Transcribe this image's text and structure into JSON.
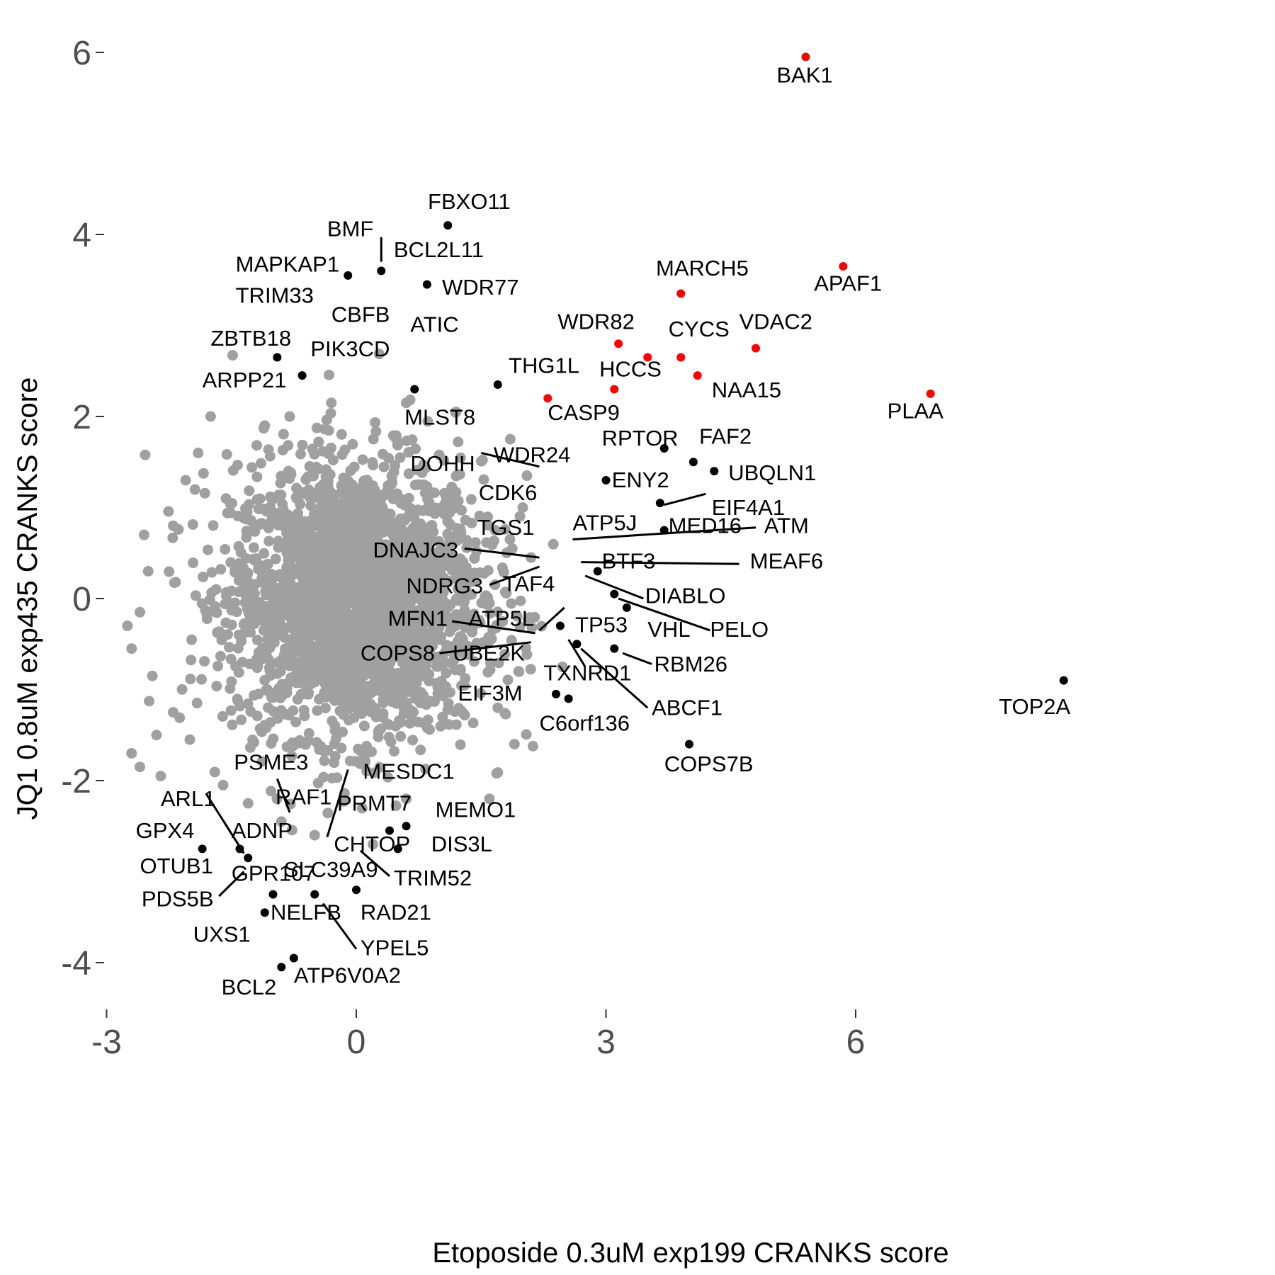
{
  "chart_data": {
    "type": "scatter",
    "xlabel": "Etoposide 0.3uM exp199 CRANKS score",
    "ylabel": "JQ1 0.8uM exp435 CRANKS score",
    "xlim": [
      -3.2,
      8.6
    ],
    "ylim": [
      -4.55,
      6.3
    ],
    "x_ticks": [
      -3,
      0,
      3,
      6
    ],
    "x_tick_labels": [
      "-3",
      "0",
      "3",
      "6"
    ],
    "y_ticks": [
      -4,
      -2,
      0,
      2,
      4,
      6
    ],
    "y_tick_labels": [
      "-4",
      "-2",
      "0",
      "2",
      "4",
      "6"
    ],
    "grid": false,
    "colors": {
      "background": "#ffffff",
      "background_points": "#a0a0a0",
      "labeled_points": "#000000",
      "highlight_points": "#ff0000"
    },
    "background_cloud": {
      "description_count": "approximate",
      "color": "#a0a0a0",
      "center": [
        0.0,
        0.0
      ],
      "spread": [
        0.75,
        0.75
      ],
      "n": 2600,
      "outliers": [
        [
          -2.7,
          -0.55
        ],
        [
          -2.6,
          -0.15
        ],
        [
          -2.5,
          0.3
        ],
        [
          -2.45,
          -0.85
        ],
        [
          -2.7,
          -1.7
        ],
        [
          -2.6,
          -1.85
        ],
        [
          -2.4,
          -1.5
        ],
        [
          -2.2,
          0.8
        ],
        [
          -2.05,
          1.3
        ],
        [
          -1.75,
          2.0
        ],
        [
          -1.1,
          1.9
        ],
        [
          -0.8,
          2.0
        ],
        [
          -2.35,
          -1.95
        ],
        [
          -2.0,
          -1.55
        ],
        [
          -1.6,
          -2.05
        ],
        [
          -1.3,
          -2.25
        ],
        [
          -0.9,
          -2.45
        ],
        [
          -0.5,
          -2.6
        ],
        [
          0.2,
          -2.7
        ],
        [
          0.6,
          -2.2
        ],
        [
          1.6,
          -2.2
        ],
        [
          1.9,
          -1.6
        ],
        [
          2.05,
          1.35
        ],
        [
          1.85,
          1.75
        ],
        [
          2.0,
          1.0
        ],
        [
          1.2,
          2.05
        ],
        [
          0.6,
          2.15
        ],
        [
          -0.3,
          2.15
        ],
        [
          1.7,
          -1.2
        ],
        [
          -2.55,
          0.7
        ],
        [
          -2.2,
          -1.25
        ],
        [
          1.95,
          -0.8
        ],
        [
          2.1,
          0.45
        ],
        [
          -2.75,
          -0.3
        ],
        [
          -1.9,
          1.6
        ]
      ]
    },
    "highlighted_points": [
      {
        "gene": "BAK1",
        "x": 5.4,
        "y": 5.95
      },
      {
        "gene": "APAF1",
        "x": 5.85,
        "y": 3.65
      },
      {
        "gene": "MARCH5",
        "x": 3.9,
        "y": 3.35
      },
      {
        "gene": "VDAC2",
        "x": 4.8,
        "y": 2.75
      },
      {
        "gene": "WDR82",
        "x": 3.15,
        "y": 2.8
      },
      {
        "gene": "CYCS",
        "x": 3.9,
        "y": 2.65
      },
      {
        "gene": "HCCS",
        "x": 3.5,
        "y": 2.65
      },
      {
        "gene": "NAA15",
        "x": 4.1,
        "y": 2.45
      },
      {
        "gene": "CASP9",
        "x": 2.3,
        "y": 2.2
      },
      {
        "gene": "",
        "x": 3.1,
        "y": 2.3
      },
      {
        "gene": "PLAA",
        "x": 6.9,
        "y": 2.25
      }
    ],
    "labeled_points": [
      {
        "gene": "FBXO11",
        "x": 1.1,
        "y": 4.1
      },
      {
        "gene": "BCL2L11",
        "x": 0.3,
        "y": 3.6
      },
      {
        "gene": "MAPKAP1",
        "x": -0.1,
        "y": 3.55
      },
      {
        "gene": "WDR77",
        "x": 0.85,
        "y": 3.45
      },
      {
        "gene": "TOP2A",
        "x": 8.5,
        "y": -0.9
      },
      {
        "gene": "COPS7B",
        "x": 4.0,
        "y": -1.6
      },
      {
        "gene": "BCL2",
        "x": -0.9,
        "y": -4.05
      },
      {
        "gene": "ATP6V0A2",
        "x": -0.75,
        "y": -3.95
      },
      {
        "gene": "GPX4",
        "x": -1.85,
        "y": -2.75
      },
      {
        "gene": "TRIM52",
        "x": 0.5,
        "y": -2.75
      },
      {
        "gene": "UBQLN1",
        "x": 4.3,
        "y": 1.4
      },
      {
        "gene": "RPTOR",
        "x": 3.7,
        "y": 1.65
      },
      {
        "gene": "FAF2",
        "x": 4.05,
        "y": 1.5
      },
      {
        "gene": "EIF4A1",
        "x": 3.65,
        "y": 1.05
      },
      {
        "gene": "ENY2",
        "x": 3.0,
        "y": 1.3
      },
      {
        "gene": "MED16",
        "x": 3.7,
        "y": 0.75
      },
      {
        "gene": "MEMO1",
        "x": 0.6,
        "y": -2.5
      },
      {
        "gene": "DIS3L",
        "x": 0.4,
        "y": -2.55
      },
      {
        "gene": "ARPP21",
        "x": -0.65,
        "y": 2.45
      },
      {
        "gene": "ZBTB18",
        "x": -0.95,
        "y": 2.65
      },
      {
        "gene": "THG1L",
        "x": 1.7,
        "y": 2.35
      },
      {
        "gene": "MLST8",
        "x": 0.7,
        "y": 2.3
      },
      {
        "gene": "ABCF1",
        "x": 2.65,
        "y": -0.5
      },
      {
        "gene": "RBM26",
        "x": 3.1,
        "y": -0.55
      },
      {
        "gene": "VHL",
        "x": 3.25,
        "y": -0.1
      },
      {
        "gene": "PELO",
        "x": 3.1,
        "y": 0.05
      },
      {
        "gene": "DIABLO",
        "x": 2.9,
        "y": 0.3
      },
      {
        "gene": "TP53",
        "x": 2.45,
        "y": -0.3
      },
      {
        "gene": "C6orf136",
        "x": 2.4,
        "y": -1.05
      },
      {
        "gene": "TXNRD1",
        "x": 2.55,
        "y": -1.1
      },
      {
        "gene": "NELFB",
        "x": -1.1,
        "y": -3.45
      },
      {
        "gene": "UXS1",
        "x": -1.0,
        "y": -3.25
      },
      {
        "gene": "PDS5B",
        "x": -1.3,
        "y": -2.85
      },
      {
        "gene": "OTUB1",
        "x": -1.4,
        "y": -2.75
      },
      {
        "gene": "RAD21",
        "x": 0.0,
        "y": -3.2
      },
      {
        "gene": "YPEL5",
        "x": -0.5,
        "y": -3.25
      }
    ],
    "labels": [
      {
        "text": "BAK1",
        "x": 5.05,
        "y": 5.67
      },
      {
        "text": "APAF1",
        "x": 5.5,
        "y": 3.38
      },
      {
        "text": "MARCH5",
        "x": 3.6,
        "y": 3.55
      },
      {
        "text": "VDAC2",
        "x": 4.6,
        "y": 2.96
      },
      {
        "text": "WDR82",
        "x": 2.42,
        "y": 2.96
      },
      {
        "text": "CYCS",
        "x": 3.75,
        "y": 2.88
      },
      {
        "text": "HCCS",
        "x": 2.92,
        "y": 2.44
      },
      {
        "text": "NAA15",
        "x": 4.27,
        "y": 2.21
      },
      {
        "text": "CASP9",
        "x": 2.3,
        "y": 1.96
      },
      {
        "text": "PLAA",
        "x": 6.38,
        "y": 1.98
      },
      {
        "text": "FBXO11",
        "x": 0.86,
        "y": 4.28
      },
      {
        "text": "BMF",
        "x": -0.35,
        "y": 3.98
      },
      {
        "text": "BCL2L11",
        "x": 0.45,
        "y": 3.75
      },
      {
        "text": "MAPKAP1",
        "x": -1.45,
        "y": 3.59
      },
      {
        "text": "WDR77",
        "x": 1.03,
        "y": 3.34
      },
      {
        "text": "TRIM33",
        "x": -1.45,
        "y": 3.25
      },
      {
        "text": "CBFB",
        "x": -0.3,
        "y": 3.04
      },
      {
        "text": "ATIC",
        "x": 0.65,
        "y": 2.93
      },
      {
        "text": "ZBTB18",
        "x": -1.75,
        "y": 2.78
      },
      {
        "text": "PIK3CD",
        "x": -0.55,
        "y": 2.66
      },
      {
        "text": "THG1L",
        "x": 1.83,
        "y": 2.48
      },
      {
        "text": "ARPP21",
        "x": -1.85,
        "y": 2.32
      },
      {
        "text": "MLST8",
        "x": 0.58,
        "y": 1.91
      },
      {
        "text": "RPTOR",
        "x": 2.95,
        "y": 1.68
      },
      {
        "text": "FAF2",
        "x": 4.12,
        "y": 1.7
      },
      {
        "text": "WDR24",
        "x": 1.65,
        "y": 1.5
      },
      {
        "text": "DOHH",
        "x": 0.65,
        "y": 1.4
      },
      {
        "text": "UBQLN1",
        "x": 4.47,
        "y": 1.3
      },
      {
        "text": "ENY2",
        "x": 3.07,
        "y": 1.22
      },
      {
        "text": "CDK6",
        "x": 1.47,
        "y": 1.08
      },
      {
        "text": "EIF4A1",
        "x": 4.27,
        "y": 0.92
      },
      {
        "text": "TGS1",
        "x": 1.45,
        "y": 0.7
      },
      {
        "text": "ATP5J",
        "x": 2.6,
        "y": 0.75
      },
      {
        "text": "MED16",
        "x": 3.75,
        "y": 0.72
      },
      {
        "text": "ATM",
        "x": 4.9,
        "y": 0.72
      },
      {
        "text": "DNAJC3",
        "x": 0.2,
        "y": 0.45
      },
      {
        "text": "BTF3",
        "x": 2.95,
        "y": 0.33
      },
      {
        "text": "MEAF6",
        "x": 4.73,
        "y": 0.33
      },
      {
        "text": "NDRG3",
        "x": 0.6,
        "y": 0.06
      },
      {
        "text": "TAF4",
        "x": 1.76,
        "y": 0.08
      },
      {
        "text": "DIABLO",
        "x": 3.47,
        "y": -0.05
      },
      {
        "text": "MFN1",
        "x": 0.38,
        "y": -0.3
      },
      {
        "text": "ATP5L",
        "x": 1.35,
        "y": -0.3
      },
      {
        "text": "VHL",
        "x": 3.5,
        "y": -0.42
      },
      {
        "text": "PELO",
        "x": 4.25,
        "y": -0.42
      },
      {
        "text": "TP53",
        "x": 2.63,
        "y": -0.37
      },
      {
        "text": "COPS8",
        "x": 0.05,
        "y": -0.68
      },
      {
        "text": "UBE2K",
        "x": 1.16,
        "y": -0.68
      },
      {
        "text": "RBM26",
        "x": 3.58,
        "y": -0.8
      },
      {
        "text": "TXNRD1",
        "x": 2.25,
        "y": -0.9
      },
      {
        "text": "EIF3M",
        "x": 1.22,
        "y": -1.12
      },
      {
        "text": "ABCF1",
        "x": 3.55,
        "y": -1.28
      },
      {
        "text": "C6orf136",
        "x": 2.2,
        "y": -1.45
      },
      {
        "text": "TOP2A",
        "x": 7.72,
        "y": -1.27
      },
      {
        "text": "COPS7B",
        "x": 3.7,
        "y": -1.9
      },
      {
        "text": "PSME3",
        "x": -1.47,
        "y": -1.88
      },
      {
        "text": "MESDC1",
        "x": 0.08,
        "y": -1.98
      },
      {
        "text": "ARL1",
        "x": -2.35,
        "y": -2.28
      },
      {
        "text": "RAF1",
        "x": -0.97,
        "y": -2.26
      },
      {
        "text": "PRMT7",
        "x": -0.23,
        "y": -2.33
      },
      {
        "text": "MEMO1",
        "x": 0.95,
        "y": -2.4
      },
      {
        "text": "GPX4",
        "x": -2.65,
        "y": -2.63
      },
      {
        "text": "ADNP",
        "x": -1.5,
        "y": -2.63
      },
      {
        "text": "CHTOP",
        "x": -0.27,
        "y": -2.78
      },
      {
        "text": "DIS3L",
        "x": 0.9,
        "y": -2.78
      },
      {
        "text": "OTUB1",
        "x": -2.6,
        "y": -3.02
      },
      {
        "text": "GPR107",
        "x": -1.5,
        "y": -3.1
      },
      {
        "text": "SLC39A9",
        "x": -0.87,
        "y": -3.06
      },
      {
        "text": "TRIM52",
        "x": 0.45,
        "y": -3.15
      },
      {
        "text": "PDS5B",
        "x": -2.58,
        "y": -3.38
      },
      {
        "text": "NELFB",
        "x": -1.03,
        "y": -3.53
      },
      {
        "text": "RAD21",
        "x": 0.05,
        "y": -3.53
      },
      {
        "text": "UXS1",
        "x": -1.96,
        "y": -3.77
      },
      {
        "text": "YPEL5",
        "x": 0.05,
        "y": -3.92
      },
      {
        "text": "BCL2",
        "x": -1.62,
        "y": -4.35
      },
      {
        "text": "ATP6V0A2",
        "x": -0.75,
        "y": -4.22
      }
    ],
    "leader_lines": [
      [
        0.3,
        3.97,
        0.3,
        3.7
      ],
      [
        1.5,
        1.6,
        2.2,
        1.45
      ],
      [
        3.7,
        1.03,
        4.2,
        1.15
      ],
      [
        2.6,
        0.65,
        4.8,
        0.78
      ],
      [
        1.3,
        0.55,
        2.2,
        0.45
      ],
      [
        2.7,
        0.4,
        4.6,
        0.38
      ],
      [
        1.6,
        0.15,
        2.2,
        0.35
      ],
      [
        2.75,
        0.25,
        3.45,
        0.0
      ],
      [
        3.15,
        0.0,
        4.25,
        -0.35
      ],
      [
        2.2,
        -0.35,
        2.5,
        -0.1
      ],
      [
        1.15,
        -0.25,
        2.15,
        -0.38
      ],
      [
        1.0,
        -0.6,
        2.1,
        -0.48
      ],
      [
        3.2,
        -0.6,
        3.55,
        -0.72
      ],
      [
        2.7,
        -0.55,
        3.5,
        -1.2
      ],
      [
        2.55,
        -0.45,
        2.75,
        -0.75
      ],
      [
        -1.8,
        -2.15,
        -1.35,
        -2.8
      ],
      [
        -0.95,
        -1.98,
        -0.8,
        -2.35
      ],
      [
        -0.1,
        -1.88,
        -0.35,
        -2.62
      ],
      [
        0.05,
        -2.77,
        0.4,
        -3.05
      ],
      [
        -1.65,
        -3.27,
        -1.35,
        -3.0
      ],
      [
        -0.4,
        -3.35,
        0.0,
        -3.85
      ]
    ]
  }
}
